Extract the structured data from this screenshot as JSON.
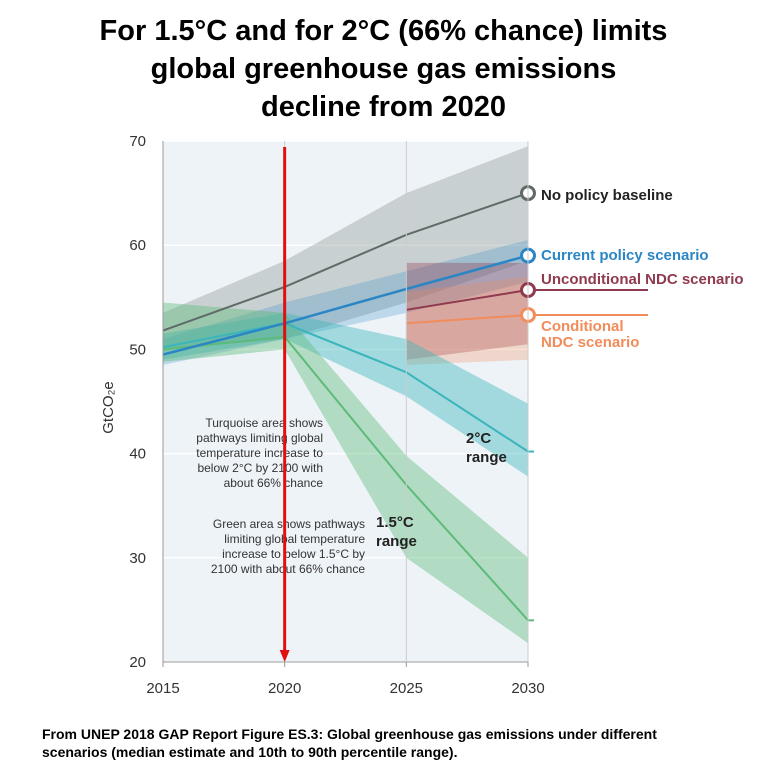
{
  "title_lines": [
    "For 1.5°C and for 2°C (66% chance) limits",
    "global greenhouse gas emissions",
    "decline from 2020"
  ],
  "caption_lines": [
    "From UNEP 2018 GAP Report Figure ES.3: Global greenhouse gas emissions under different",
    "scenarios  (median estimate and 10th to 90th percentile range)."
  ],
  "colors": {
    "no_policy": "#5f6b66",
    "current_policy": "#2a86c5",
    "unconditional_ndc": "#8f3a4e",
    "conditional_ndc": "#f28c5a",
    "two_c": "#3ab5bb",
    "one_five_c": "#5dbb79",
    "arrow": "#e01010"
  },
  "chart_data": {
    "type": "line",
    "x": [
      2015,
      2020,
      2025,
      2030
    ],
    "xlim": [
      2015,
      2030
    ],
    "ylim": [
      20,
      70
    ],
    "ylabel": "GtCO₂e",
    "xticks": [
      "2015",
      "2020",
      "2025",
      "2030"
    ],
    "yticks": [
      "20",
      "30",
      "40",
      "50",
      "60",
      "70"
    ],
    "series": [
      {
        "key": "no_policy",
        "name": "No policy baseline",
        "color_key": "no_policy",
        "x": [
          2015,
          2020,
          2025,
          2030
        ],
        "median": [
          51.8,
          56,
          61,
          65
        ],
        "lower": [
          50,
          51,
          54.5,
          58.5
        ],
        "upper": [
          53.5,
          58.5,
          65,
          69.5
        ]
      },
      {
        "key": "current_policy",
        "name": "Current policy scenario",
        "color_key": "current_policy",
        "x": [
          2015,
          2020,
          2025,
          2030
        ],
        "median": [
          49.5,
          52.5,
          55.8,
          59
        ],
        "lower": [
          48.5,
          51,
          53.5,
          56.5
        ],
        "upper": [
          51,
          54.5,
          57.5,
          60.5
        ]
      },
      {
        "key": "unconditional_ndc",
        "name": "Unconditional NDC scenario",
        "color_key": "unconditional_ndc",
        "x": [
          2025,
          2030
        ],
        "median": [
          53.8,
          55.7
        ],
        "lower": [
          49,
          50.5
        ],
        "upper": [
          58.3,
          58.3
        ]
      },
      {
        "key": "conditional_ndc",
        "name": "Conditional NDC scenario",
        "color_key": "conditional_ndc",
        "x": [
          2025,
          2030
        ],
        "median": [
          52.5,
          53.3
        ],
        "lower": [
          48.5,
          49
        ],
        "upper": [
          55.5,
          57
        ]
      },
      {
        "key": "two_c",
        "name": "2°C range",
        "color_key": "two_c",
        "x": [
          2015,
          2020,
          2025,
          2030
        ],
        "median": [
          50.2,
          52.5,
          47.8,
          40.2
        ],
        "lower": [
          49,
          51,
          45.5,
          37.8
        ],
        "upper": [
          51.5,
          53.5,
          51,
          44.8
        ]
      },
      {
        "key": "one_five_c",
        "name": "1.5°C range",
        "color_key": "one_five_c",
        "x": [
          2015,
          2020,
          2025,
          2030
        ],
        "median": [
          50,
          51.2,
          37,
          24
        ],
        "lower": [
          48.8,
          50,
          30,
          21.8
        ],
        "upper": [
          54.5,
          53.5,
          39.8,
          30
        ]
      }
    ],
    "legend": [
      {
        "label": "No policy baseline",
        "series": "no_policy",
        "lines": [
          "No policy baseline"
        ]
      },
      {
        "label": "Current policy scenario",
        "series": "current_policy",
        "lines": [
          "Current policy scenario"
        ]
      },
      {
        "label": "Unconditional NDC scenario",
        "series": "unconditional_ndc",
        "lines": [
          "Unconditional NDC scenario"
        ]
      },
      {
        "label": "Conditional NDC scenario",
        "series": "conditional_ndc",
        "lines": [
          "Conditional",
          "NDC scenario"
        ]
      }
    ],
    "range_labels": [
      {
        "text": "2°C",
        "text2": "range",
        "series": "two_c"
      },
      {
        "text": "1.5°C",
        "text2": "range",
        "series": "one_five_c"
      }
    ],
    "annotations": [
      {
        "lines": [
          "Turquoise area shows",
          "pathways limiting global",
          "temperature increase to",
          "below 2°C by 2100 with",
          "about 66% chance"
        ]
      },
      {
        "lines": [
          "Green area shows pathways",
          "limiting global temperature",
          "increase to below 1.5°C by",
          "2100 with about 66% chance"
        ]
      }
    ],
    "marker": {
      "x": 2020,
      "from_y": 70,
      "to_y": 20
    }
  }
}
